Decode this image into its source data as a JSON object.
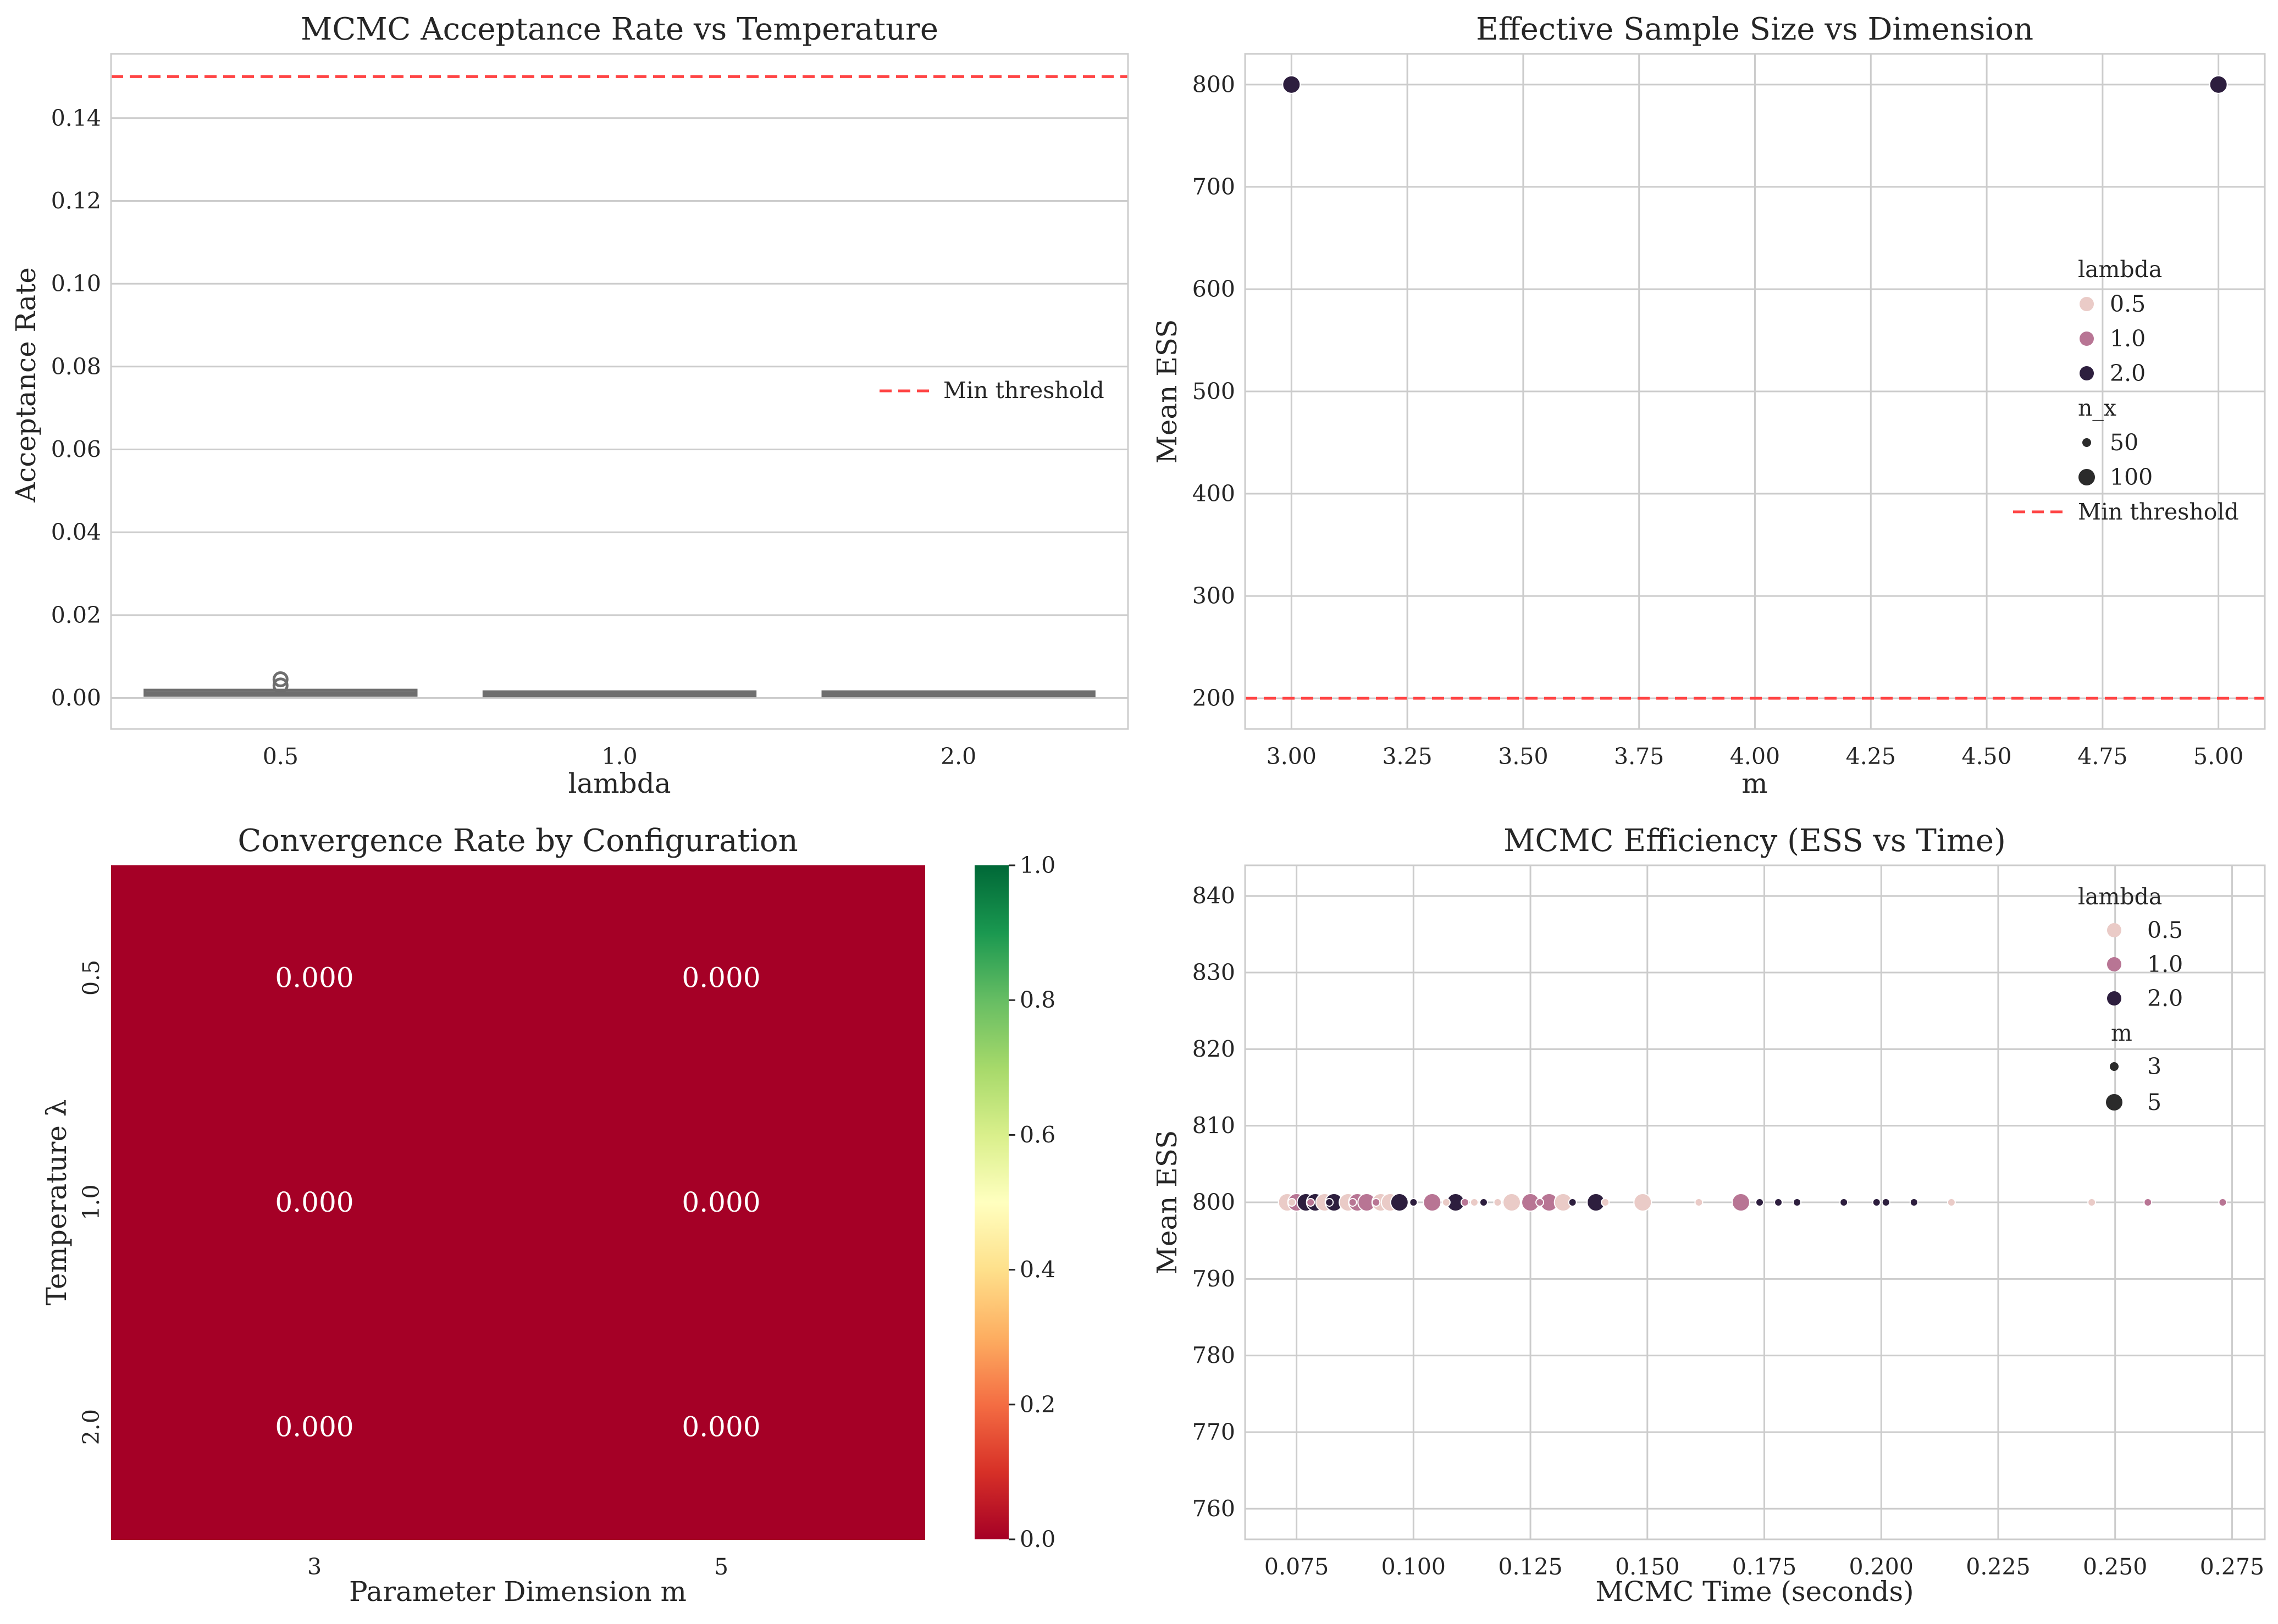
{
  "colors": {
    "threshold": "#ff4444",
    "lambda_0_5": "#eacbc7",
    "lambda_1_0": "#b87594",
    "lambda_2_0": "#2d1e3e",
    "box": "#6e6e6e",
    "heat_cell": "#a50026",
    "grid": "#cccccc"
  },
  "chart_data": [
    {
      "id": "acceptance",
      "type": "box",
      "title": "MCMC Acceptance Rate vs Temperature",
      "xlabel": "lambda",
      "ylabel": "Acceptance Rate",
      "categories": [
        "0.5",
        "1.0",
        "2.0"
      ],
      "ylim": [
        -0.0075,
        0.1555
      ],
      "yticks": [
        0.0,
        0.02,
        0.04,
        0.06,
        0.08,
        0.1,
        0.12,
        0.14
      ],
      "ytick_labels": [
        "0.00",
        "0.02",
        "0.04",
        "0.06",
        "0.08",
        "0.10",
        "0.12",
        "0.14"
      ],
      "boxes": [
        {
          "category": "0.5",
          "q1": 0.001,
          "median": 0.0012,
          "q3": 0.0015,
          "whisker_low": 0.0008,
          "whisker_high": 0.0018,
          "outliers": [
            0.003,
            0.0045
          ]
        },
        {
          "category": "1.0",
          "q1": 0.0009,
          "median": 0.001,
          "q3": 0.0011,
          "whisker_low": 0.0008,
          "whisker_high": 0.0012,
          "outliers": []
        },
        {
          "category": "2.0",
          "q1": 0.0009,
          "median": 0.001,
          "q3": 0.0011,
          "whisker_low": 0.0008,
          "whisker_high": 0.0012,
          "outliers": []
        }
      ],
      "threshold": {
        "value": 0.15,
        "label": "Min threshold"
      },
      "grid": true,
      "legend_position": "center-right"
    },
    {
      "id": "ess_dim",
      "type": "scatter",
      "title": "Effective Sample Size vs Dimension",
      "xlabel": "m",
      "ylabel": "Mean ESS",
      "xlim": [
        2.9,
        5.1
      ],
      "ylim": [
        170,
        830
      ],
      "xticks": [
        3.0,
        3.25,
        3.5,
        3.75,
        4.0,
        4.25,
        4.5,
        4.75,
        5.0
      ],
      "xtick_labels": [
        "3.00",
        "3.25",
        "3.50",
        "3.75",
        "4.00",
        "4.25",
        "4.50",
        "4.75",
        "5.00"
      ],
      "yticks": [
        200,
        300,
        400,
        500,
        600,
        700,
        800
      ],
      "ytick_labels": [
        "200",
        "300",
        "400",
        "500",
        "600",
        "700",
        "800"
      ],
      "points": [
        {
          "x": 3.0,
          "y": 800,
          "lambda": "2.0",
          "n_x": 100
        },
        {
          "x": 5.0,
          "y": 800,
          "lambda": "2.0",
          "n_x": 100
        }
      ],
      "threshold": {
        "value": 200,
        "label": "Min threshold"
      },
      "legend": {
        "hue_title": "lambda",
        "hue_entries": [
          "0.5",
          "1.0",
          "2.0"
        ],
        "size_title": "n_x",
        "size_entries": [
          "50",
          "100"
        ],
        "line_entry": "Min threshold"
      },
      "grid": true,
      "legend_position": "center-right"
    },
    {
      "id": "convergence",
      "type": "heatmap",
      "title": "Convergence Rate by Configuration",
      "xlabel": "Parameter Dimension m",
      "ylabel": "Temperature λ",
      "x_categories": [
        "3",
        "5"
      ],
      "y_categories": [
        "0.5",
        "1.0",
        "2.0"
      ],
      "values": [
        [
          0.0,
          0.0
        ],
        [
          0.0,
          0.0
        ],
        [
          0.0,
          0.0
        ]
      ],
      "cell_labels": [
        [
          "0.000",
          "0.000"
        ],
        [
          "0.000",
          "0.000"
        ],
        [
          "0.000",
          "0.000"
        ]
      ],
      "colorbar": {
        "min": 0.0,
        "max": 1.0,
        "colormap": "RdYlGn",
        "ticks": [
          "0.0",
          "0.2",
          "0.4",
          "0.6",
          "0.8",
          "1.0"
        ]
      }
    },
    {
      "id": "efficiency",
      "type": "scatter",
      "title": "MCMC Efficiency (ESS vs Time)",
      "xlabel": "MCMC Time (seconds)",
      "ylabel": "Mean ESS",
      "xlim": [
        0.064,
        0.282
      ],
      "ylim": [
        756,
        844
      ],
      "xticks": [
        0.075,
        0.1,
        0.125,
        0.15,
        0.175,
        0.2,
        0.225,
        0.25,
        0.275
      ],
      "xtick_labels": [
        "0.075",
        "0.100",
        "0.125",
        "0.150",
        "0.175",
        "0.200",
        "0.225",
        "0.250",
        "0.275"
      ],
      "yticks": [
        760,
        770,
        780,
        790,
        800,
        810,
        820,
        830,
        840
      ],
      "ytick_labels": [
        "760",
        "770",
        "780",
        "790",
        "800",
        "810",
        "820",
        "830",
        "840"
      ],
      "points": [
        {
          "x": 0.073,
          "lambda": "0.5",
          "m": 5
        },
        {
          "x": 0.075,
          "lambda": "1.0",
          "m": 5
        },
        {
          "x": 0.077,
          "lambda": "2.0",
          "m": 5
        },
        {
          "x": 0.079,
          "lambda": "2.0",
          "m": 5
        },
        {
          "x": 0.081,
          "lambda": "0.5",
          "m": 5
        },
        {
          "x": 0.083,
          "lambda": "2.0",
          "m": 5
        },
        {
          "x": 0.086,
          "lambda": "0.5",
          "m": 5
        },
        {
          "x": 0.088,
          "lambda": "1.0",
          "m": 5
        },
        {
          "x": 0.09,
          "lambda": "1.0",
          "m": 5
        },
        {
          "x": 0.093,
          "lambda": "0.5",
          "m": 5
        },
        {
          "x": 0.095,
          "lambda": "0.5",
          "m": 5
        },
        {
          "x": 0.097,
          "lambda": "2.0",
          "m": 5
        },
        {
          "x": 0.104,
          "lambda": "1.0",
          "m": 5
        },
        {
          "x": 0.109,
          "lambda": "2.0",
          "m": 5
        },
        {
          "x": 0.121,
          "lambda": "0.5",
          "m": 5
        },
        {
          "x": 0.125,
          "lambda": "1.0",
          "m": 5
        },
        {
          "x": 0.129,
          "lambda": "1.0",
          "m": 5
        },
        {
          "x": 0.132,
          "lambda": "0.5",
          "m": 5
        },
        {
          "x": 0.139,
          "lambda": "2.0",
          "m": 5
        },
        {
          "x": 0.149,
          "lambda": "0.5",
          "m": 5
        },
        {
          "x": 0.17,
          "lambda": "1.0",
          "m": 5
        },
        {
          "x": 0.074,
          "lambda": "0.5",
          "m": 3
        },
        {
          "x": 0.078,
          "lambda": "1.0",
          "m": 3
        },
        {
          "x": 0.082,
          "lambda": "2.0",
          "m": 3
        },
        {
          "x": 0.087,
          "lambda": "1.0",
          "m": 3
        },
        {
          "x": 0.092,
          "lambda": "1.0",
          "m": 3
        },
        {
          "x": 0.1,
          "lambda": "2.0",
          "m": 3
        },
        {
          "x": 0.107,
          "lambda": "0.5",
          "m": 3
        },
        {
          "x": 0.111,
          "lambda": "1.0",
          "m": 3
        },
        {
          "x": 0.113,
          "lambda": "0.5",
          "m": 3
        },
        {
          "x": 0.115,
          "lambda": "2.0",
          "m": 3
        },
        {
          "x": 0.118,
          "lambda": "0.5",
          "m": 3
        },
        {
          "x": 0.127,
          "lambda": "1.0",
          "m": 3
        },
        {
          "x": 0.134,
          "lambda": "2.0",
          "m": 3
        },
        {
          "x": 0.141,
          "lambda": "0.5",
          "m": 3
        },
        {
          "x": 0.161,
          "lambda": "0.5",
          "m": 3
        },
        {
          "x": 0.174,
          "lambda": "2.0",
          "m": 3
        },
        {
          "x": 0.178,
          "lambda": "2.0",
          "m": 3
        },
        {
          "x": 0.182,
          "lambda": "2.0",
          "m": 3
        },
        {
          "x": 0.192,
          "lambda": "2.0",
          "m": 3
        },
        {
          "x": 0.199,
          "lambda": "2.0",
          "m": 3
        },
        {
          "x": 0.201,
          "lambda": "2.0",
          "m": 3
        },
        {
          "x": 0.207,
          "lambda": "2.0",
          "m": 3
        },
        {
          "x": 0.215,
          "lambda": "0.5",
          "m": 3
        },
        {
          "x": 0.245,
          "lambda": "0.5",
          "m": 3
        },
        {
          "x": 0.257,
          "lambda": "1.0",
          "m": 3
        },
        {
          "x": 0.273,
          "lambda": "1.0",
          "m": 3
        }
      ],
      "y_value_all_points": 800,
      "legend": {
        "hue_title": "lambda",
        "hue_entries": [
          "0.5",
          "1.0",
          "2.0"
        ],
        "size_title": "m",
        "size_entries": [
          "3",
          "5"
        ]
      },
      "grid": true,
      "legend_position": "top-right"
    }
  ]
}
